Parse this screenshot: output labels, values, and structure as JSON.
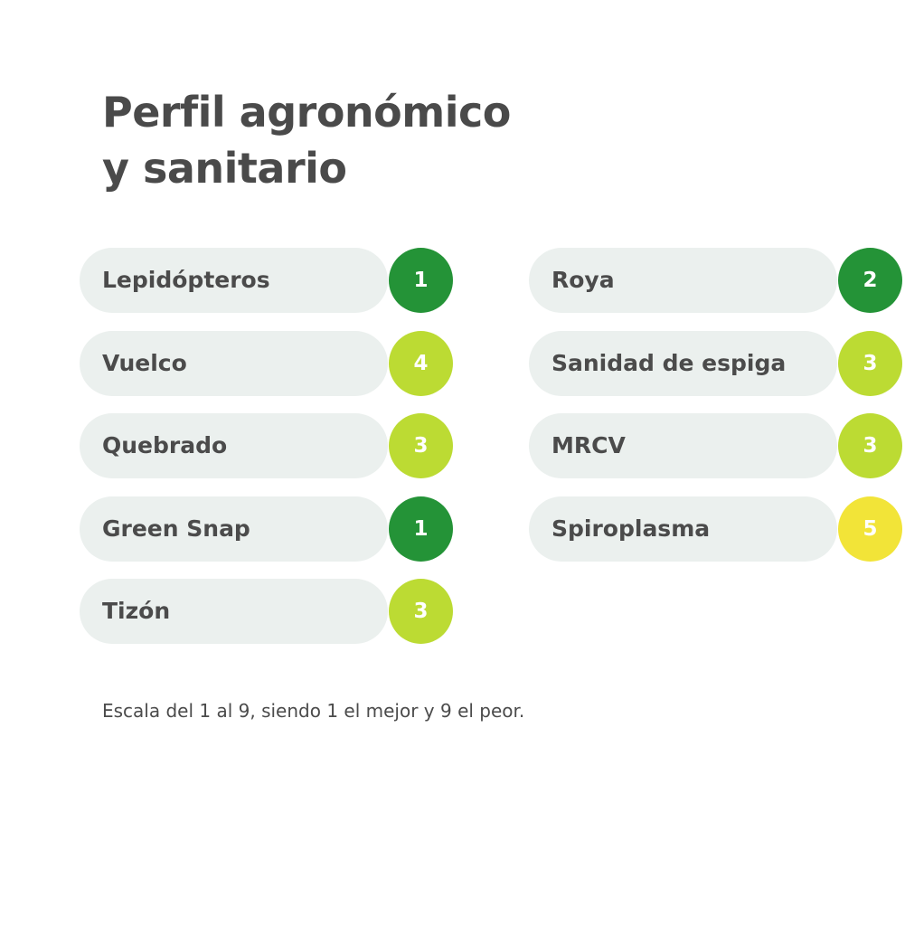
{
  "title": {
    "line1": "Perfil agronómico",
    "line2": "y sanitario"
  },
  "colors": {
    "score_1_2": "#249337",
    "score_3_4": "#bcdb33",
    "score_5": "#f2e438",
    "pill_background": "#ebf0ee",
    "text": "#4b4b4b"
  },
  "left_items": [
    {
      "label": "Lepidópteros",
      "score": "1",
      "color": "#249337"
    },
    {
      "label": "Vuelco",
      "score": "4",
      "color": "#bcdb33"
    },
    {
      "label": "Quebrado",
      "score": "3",
      "color": "#bcdb33"
    },
    {
      "label": "Green Snap",
      "score": "1",
      "color": "#249337"
    },
    {
      "label": "Tizón",
      "score": "3",
      "color": "#bcdb33"
    }
  ],
  "right_items": [
    {
      "label": "Roya",
      "score": "2",
      "color": "#249337"
    },
    {
      "label": "Sanidad de espiga",
      "score": "3",
      "color": "#bcdb33"
    },
    {
      "label": "MRCV",
      "score": "3",
      "color": "#bcdb33"
    },
    {
      "label": "Spiroplasma",
      "score": "5",
      "color": "#f2e438"
    }
  ],
  "footnote": "Escala del 1 al 9, siendo 1 el mejor y 9 el peor."
}
